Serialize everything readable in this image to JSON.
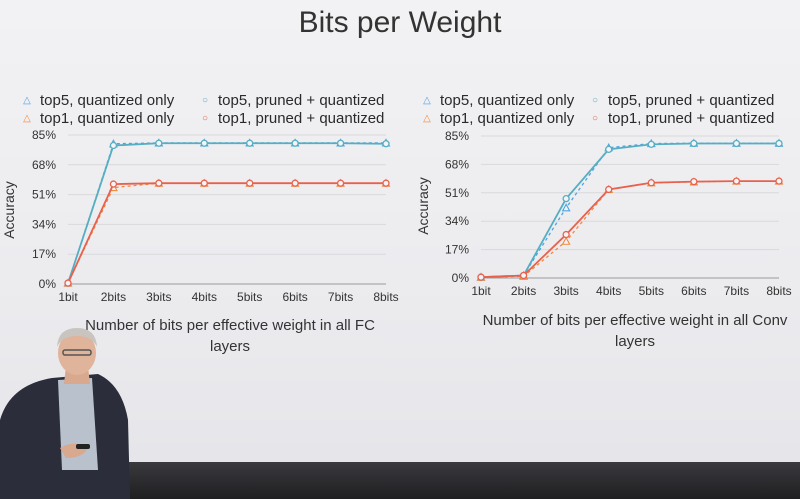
{
  "slide": {
    "title": "Bits per Weight"
  },
  "chart_data": [
    {
      "type": "line",
      "ylabel": "Accuracy",
      "xlabel": "Number of bits per effective weight in all FC layers",
      "x": [
        "1bit",
        "2bits",
        "3bits",
        "4bits",
        "5bits",
        "6bits",
        "7bits",
        "8bits"
      ],
      "yticks": [
        "0%",
        "17%",
        "34%",
        "51%",
        "68%",
        "85%"
      ],
      "ylim": [
        0,
        85
      ],
      "legend": [
        "top5, quantized only",
        "top1, quantized only",
        "top5, pruned + quantized",
        "top1, pruned + quantized"
      ],
      "series": [
        {
          "name": "top5, quantized only",
          "values": [
            0.5,
            80,
            80.5,
            80.5,
            80.5,
            80.5,
            80.5,
            80.5
          ]
        },
        {
          "name": "top1, quantized only",
          "values": [
            0.5,
            55,
            57.5,
            57.5,
            57.5,
            57.5,
            57.5,
            57.5
          ]
        },
        {
          "name": "top5, pruned + quantized",
          "values": [
            0.5,
            79,
            80.3,
            80.3,
            80.3,
            80.3,
            80.3,
            80
          ]
        },
        {
          "name": "top1, pruned + quantized",
          "values": [
            0.5,
            57,
            57.5,
            57.5,
            57.5,
            57.5,
            57.5,
            57.5
          ]
        }
      ]
    },
    {
      "type": "line",
      "ylabel": "Accuracy",
      "xlabel": "Number of bits per effective weight in all Conv layers",
      "x": [
        "1bit",
        "2bits",
        "3bits",
        "4bits",
        "5bits",
        "6bits",
        "7bits",
        "8bits"
      ],
      "yticks": [
        "0%",
        "17%",
        "34%",
        "51%",
        "68%",
        "85%"
      ],
      "ylim": [
        0,
        85
      ],
      "legend": [
        "top5, quantized only",
        "top1, quantized only",
        "top5, pruned + quantized",
        "top1, pruned + quantized"
      ],
      "series": [
        {
          "name": "top5, quantized only",
          "values": [
            0.5,
            1.5,
            42,
            78,
            80.5,
            80.7,
            80.7,
            80.7
          ]
        },
        {
          "name": "top1, quantized only",
          "values": [
            0.5,
            1,
            22,
            53,
            57,
            57.5,
            58,
            58
          ]
        },
        {
          "name": "top5, pruned + quantized",
          "values": [
            0.5,
            1.5,
            47.5,
            77,
            80,
            80.5,
            80.5,
            80.5
          ]
        },
        {
          "name": "top1, pruned + quantized",
          "values": [
            0.5,
            1.5,
            26,
            53,
            57,
            57.7,
            58,
            58
          ]
        }
      ]
    }
  ],
  "colors": {
    "top5": "#56aec2",
    "top1": "#e9614d",
    "top5_dotted": "#4fa3e0",
    "top1_dotted": "#f08a3c",
    "grid": "#d9d9db"
  }
}
